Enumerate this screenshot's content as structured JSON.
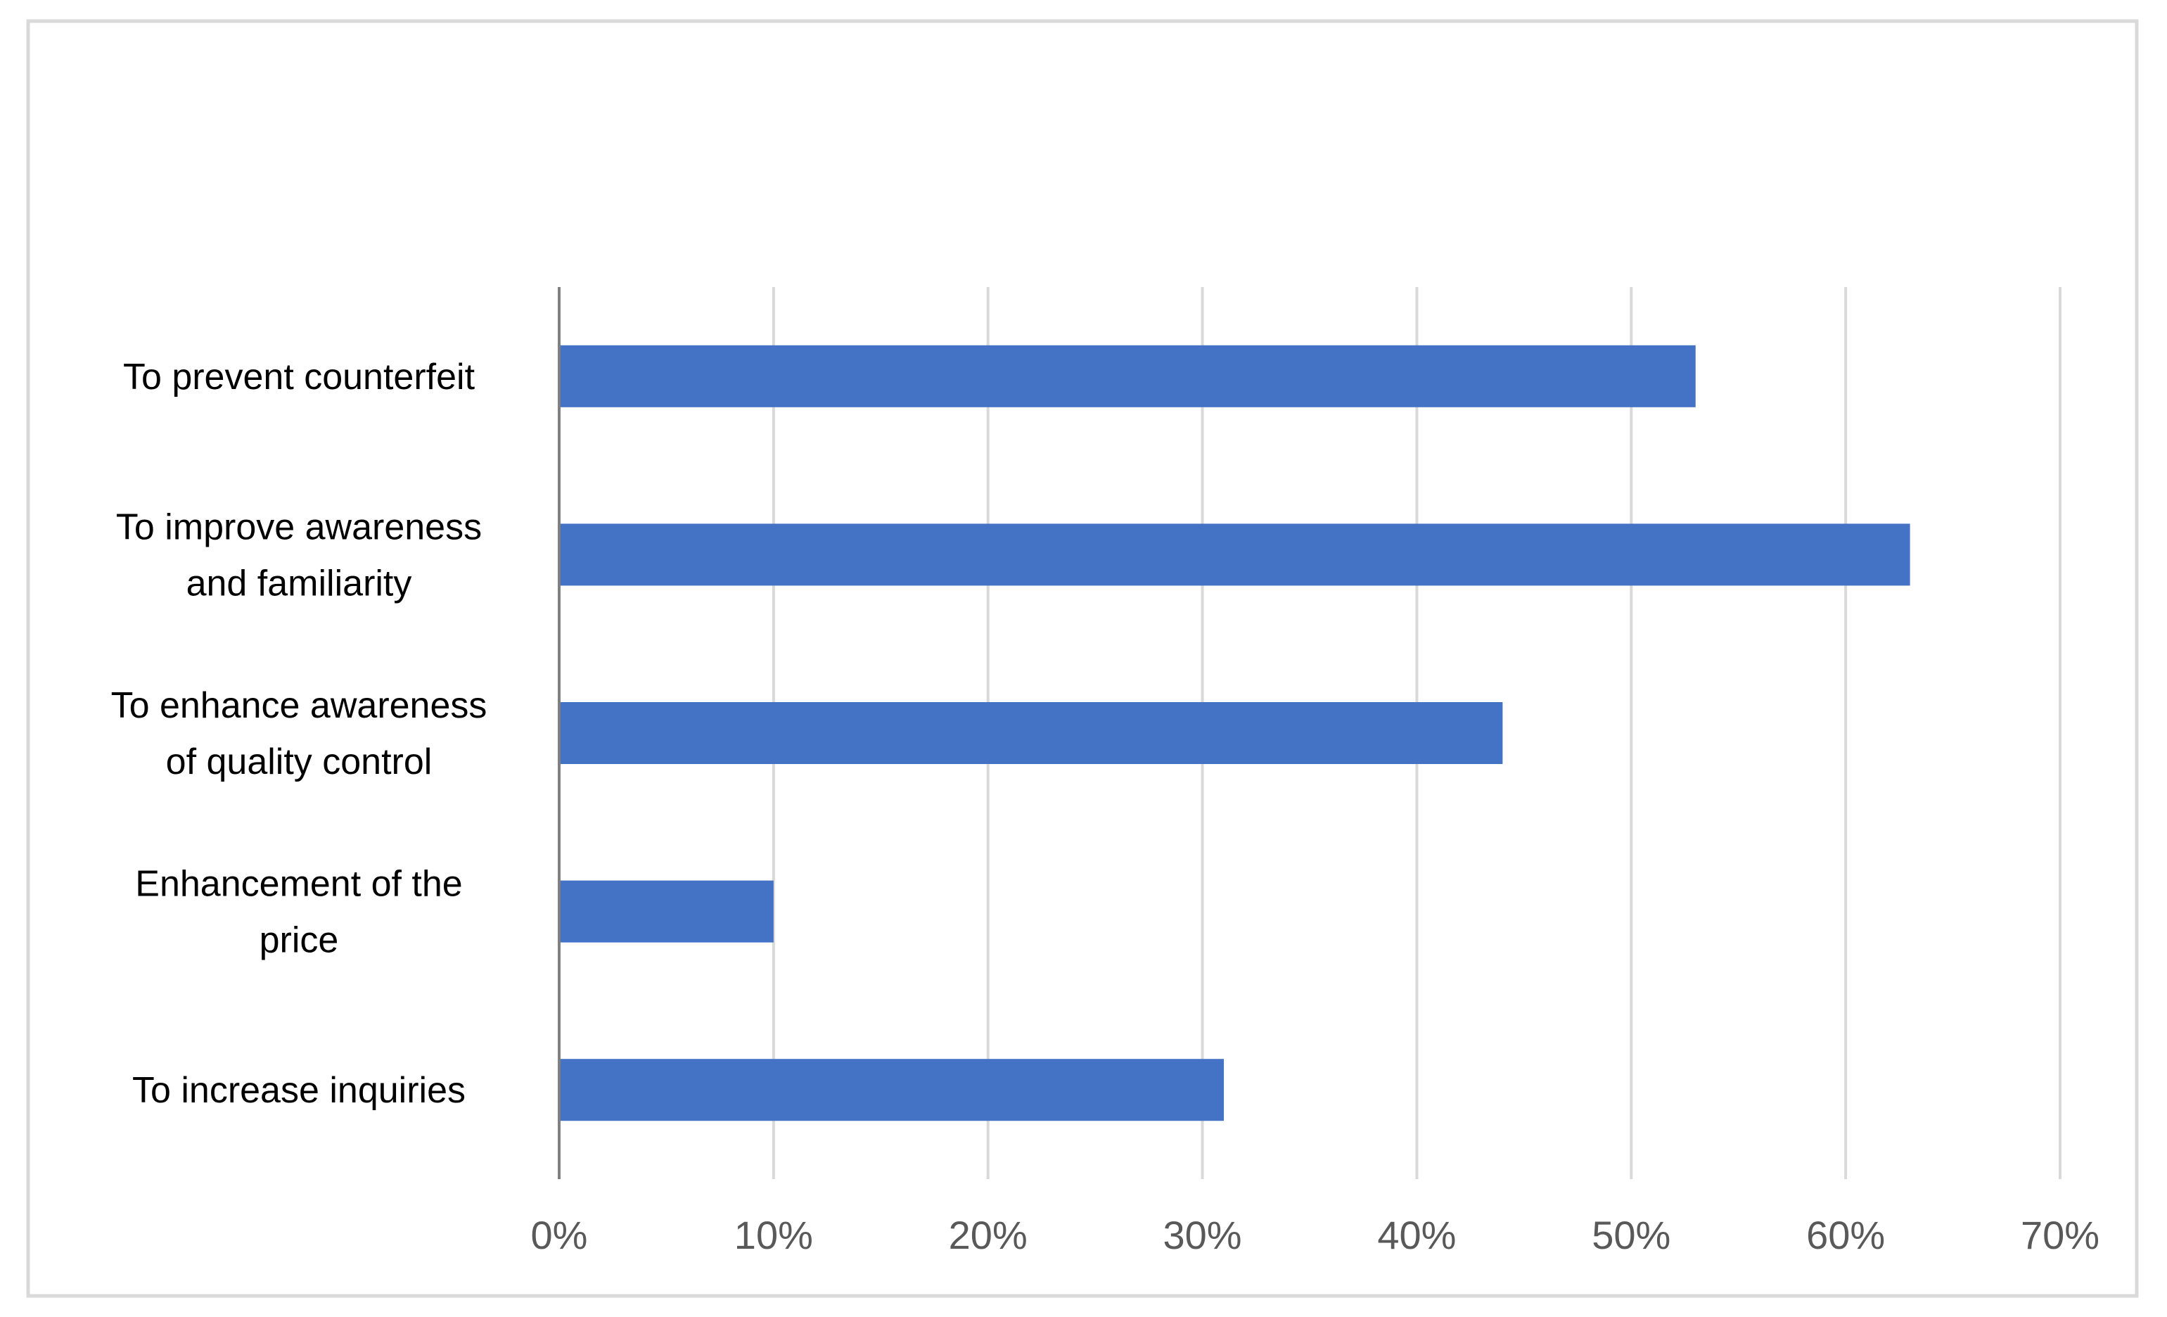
{
  "chart_data": {
    "type": "bar",
    "orientation": "horizontal",
    "title": "",
    "xlabel": "",
    "ylabel": "",
    "categories": [
      [
        "To prevent counterfeit"
      ],
      [
        "To improve awareness",
        "and familiarity"
      ],
      [
        "To enhance awareness",
        "of quality control"
      ],
      [
        "Enhancement of the",
        "price"
      ],
      [
        "To increase inquiries"
      ]
    ],
    "values": [
      0.53,
      0.63,
      0.44,
      0.1,
      0.31
    ],
    "xlim": [
      0,
      0.7
    ],
    "x_ticks": [
      0,
      0.1,
      0.2,
      0.3,
      0.4,
      0.5,
      0.6,
      0.7
    ],
    "x_tick_labels": [
      "0%",
      "10%",
      "20%",
      "30%",
      "40%",
      "50%",
      "60%",
      "70%"
    ],
    "grid": "vertical",
    "legend": "none",
    "colors": {
      "bar": "#4472C4",
      "grid": "#D9D9D9",
      "axis": "#808080",
      "border": "#D9D9D9",
      "category_text": "#000000",
      "tick_text": "#595959"
    }
  }
}
